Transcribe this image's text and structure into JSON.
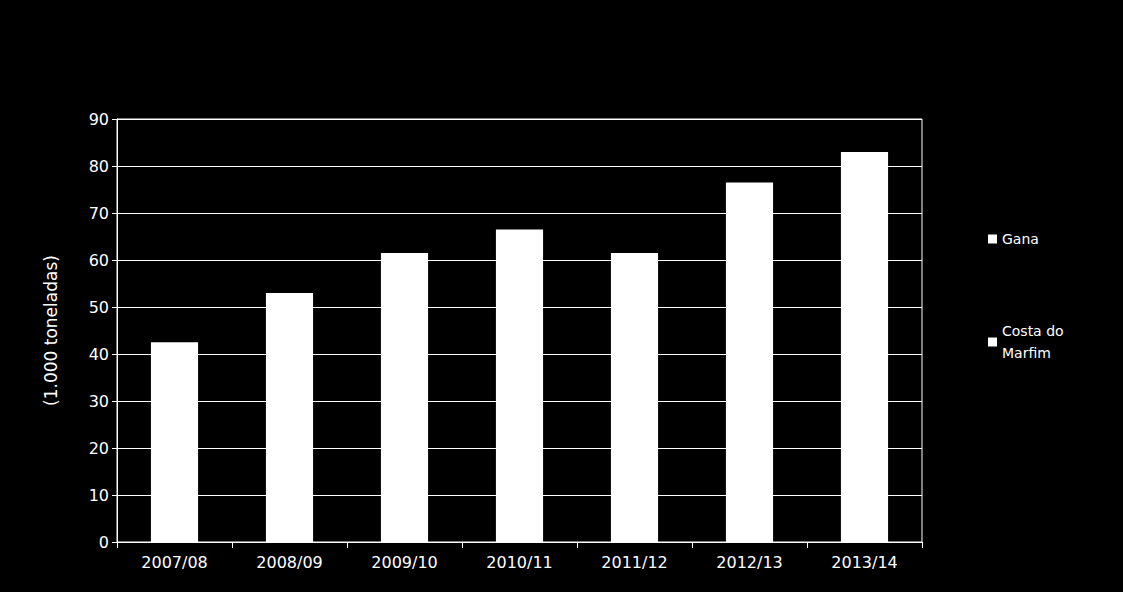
{
  "chart_data": {
    "type": "bar",
    "y_label": "(1.000 toneladas)",
    "categories": [
      "2007/08",
      "2008/09",
      "2009/10",
      "2010/11",
      "2011/12",
      "2012/13",
      "2013/14"
    ],
    "series": [
      {
        "name": "Gana",
        "color": "#ffffff",
        "values": [
          42.5,
          53,
          61.5,
          66.5,
          61.5,
          76.5,
          83
        ]
      },
      {
        "name": "Costa do Marfim",
        "color": "#ffffff",
        "values": [
          null,
          null,
          null,
          null,
          null,
          null,
          null
        ]
      }
    ],
    "ylim": [
      0,
      90
    ],
    "yticks": [
      0,
      10,
      20,
      30,
      40,
      50,
      60,
      70,
      80,
      90
    ],
    "grid": true,
    "legend": "right"
  }
}
